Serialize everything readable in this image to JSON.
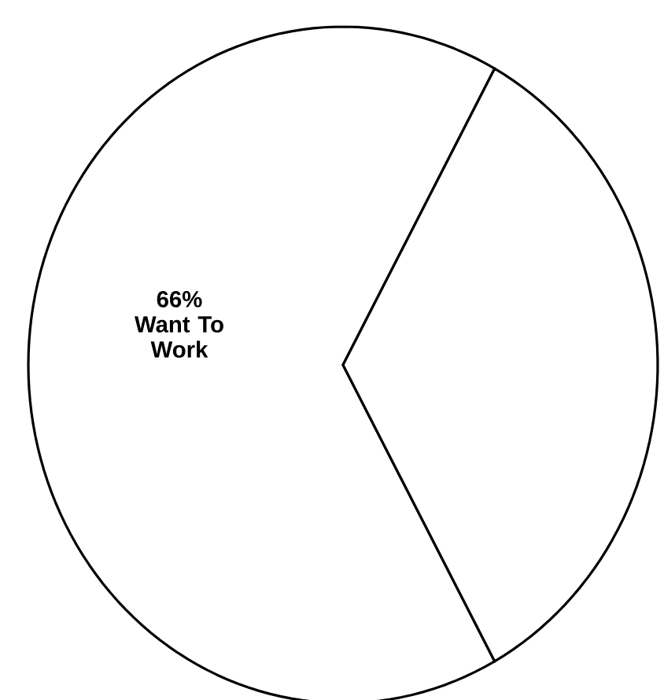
{
  "chart_data": {
    "type": "pie",
    "categories": [
      "Want To Work",
      null
    ],
    "values": [
      66,
      34
    ],
    "value_labels": [
      "66%",
      null
    ],
    "colors": [
      "#ffffff",
      "#ffffff"
    ]
  }
}
